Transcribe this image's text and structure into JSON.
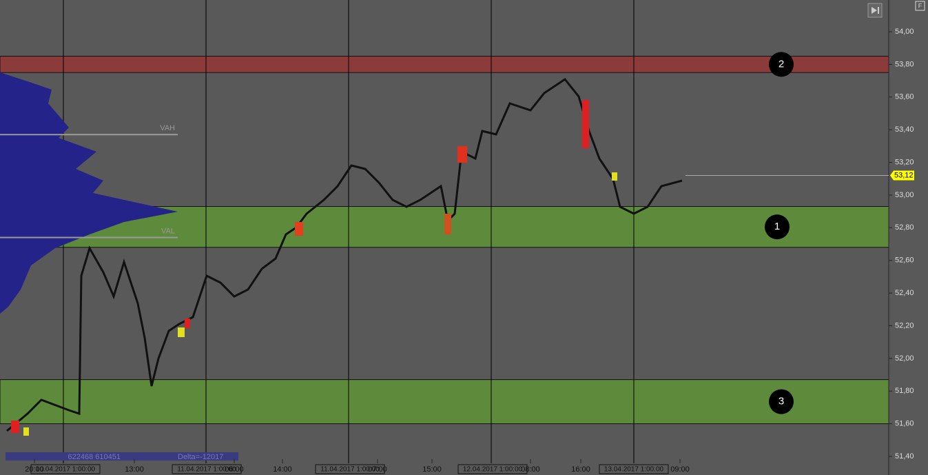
{
  "toolbar": {
    "button": "F"
  },
  "price_axis": {
    "ticks": [
      {
        "value": 54.0,
        "label": "54,00"
      },
      {
        "value": 53.8,
        "label": "53,80"
      },
      {
        "value": 53.6,
        "label": "53,60"
      },
      {
        "value": 53.4,
        "label": "53,40"
      },
      {
        "value": 53.2,
        "label": "53,20"
      },
      {
        "value": 53.0,
        "label": "53,00"
      },
      {
        "value": 52.8,
        "label": "52,80"
      },
      {
        "value": 52.6,
        "label": "52,60"
      },
      {
        "value": 52.4,
        "label": "52,40"
      },
      {
        "value": 52.2,
        "label": "52,20"
      },
      {
        "value": 52.0,
        "label": "52,00"
      },
      {
        "value": 51.8,
        "label": "51,80"
      },
      {
        "value": 51.6,
        "label": "51,60"
      },
      {
        "value": 51.4,
        "label": "51,40"
      }
    ],
    "last_price": {
      "value": 53.12,
      "label": "53,12"
    }
  },
  "zones": [
    {
      "label": "2",
      "top": 53.85,
      "bottom": 53.75,
      "color": "#8c3b3b"
    },
    {
      "label": "1",
      "top": 52.93,
      "bottom": 52.68,
      "color": "#5e8a3c"
    },
    {
      "label": "3",
      "top": 51.87,
      "bottom": 51.6,
      "color": "#5e8a3c"
    }
  ],
  "profile_levels": [
    {
      "label": "VAH",
      "value": 53.37
    },
    {
      "label": "VAL",
      "value": 52.74
    }
  ],
  "time_labels": [
    "20:00",
    "13:00",
    "06:00",
    "14:00",
    "07:00",
    "15:00",
    "08:00",
    "16:00",
    "09:00"
  ],
  "date_labels": [
    "10.04.2017 1:00:00",
    "11.04.2017 1:00:00",
    "11.04.2017 1:00:00",
    "12.04.2017 1:00:00",
    "13.04.2017 1:00:00"
  ],
  "footer": {
    "volumes": "622468 610451",
    "delta": "Delta=-12017"
  }
}
